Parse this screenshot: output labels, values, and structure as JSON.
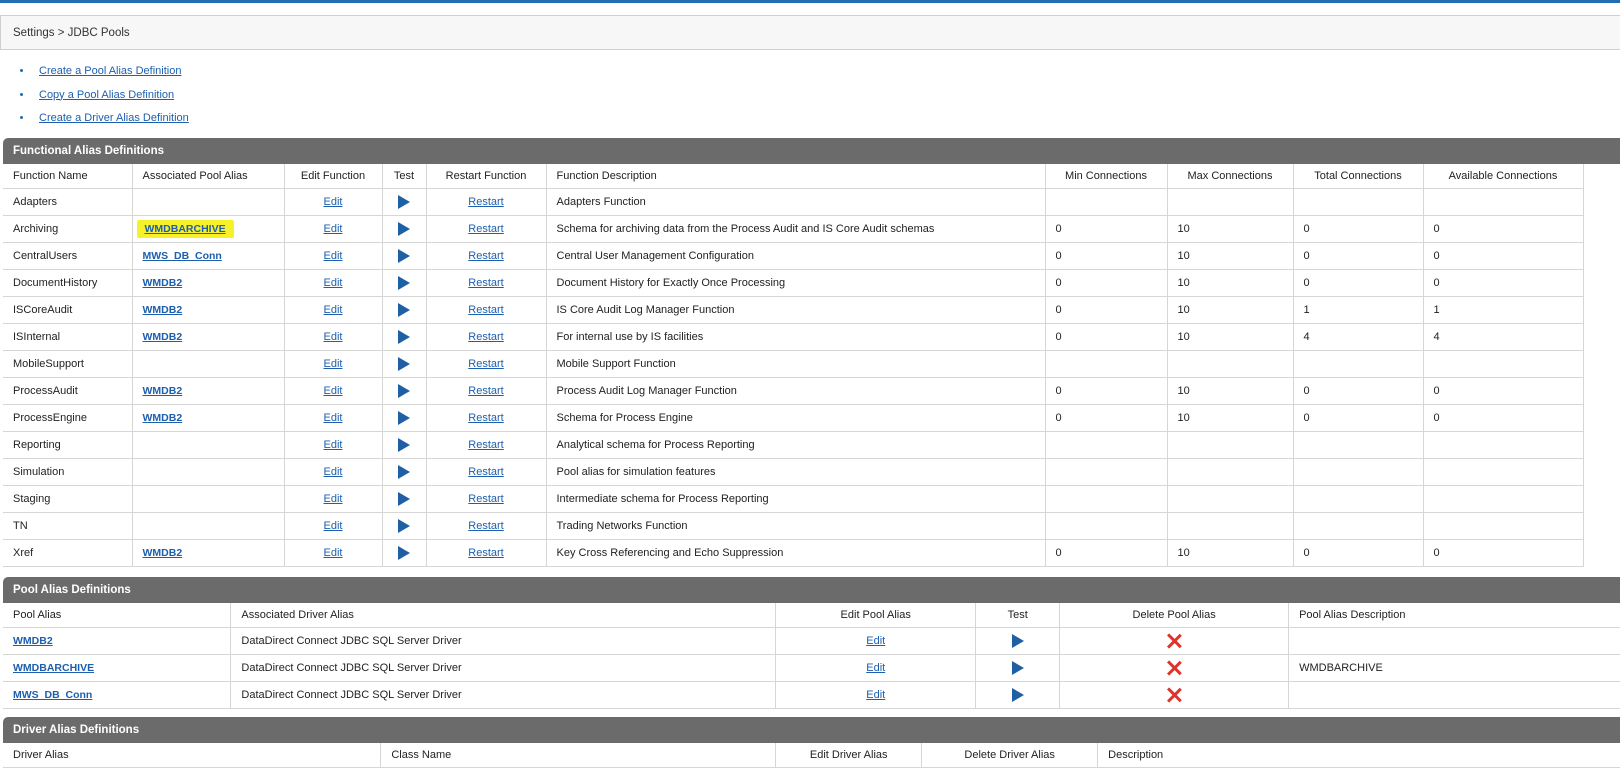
{
  "breadcrumb": "Settings > JDBC Pools",
  "links": [
    {
      "label": "Create a Pool Alias Definition"
    },
    {
      "label": "Copy a Pool Alias Definition"
    },
    {
      "label": "Create a Driver Alias Definition"
    }
  ],
  "functional": {
    "title": "Functional Alias Definitions",
    "headers": {
      "function_name": "Function Name",
      "pool_alias": "Associated Pool Alias",
      "edit": "Edit Function",
      "test": "Test",
      "restart": "Restart Function",
      "description": "Function Description",
      "min": "Min Connections",
      "max": "Max Connections",
      "total": "Total Connections",
      "available": "Available Connections"
    },
    "edit_label": "Edit",
    "restart_label": "Restart",
    "rows": [
      {
        "name": "Adapters",
        "pool": "",
        "desc": "Adapters Function",
        "min": "",
        "max": "",
        "total": "",
        "avail": ""
      },
      {
        "name": "Archiving",
        "pool": "WMDBARCHIVE",
        "highlight": true,
        "desc": "Schema for archiving data from the Process Audit and IS Core Audit schemas",
        "min": "0",
        "max": "10",
        "total": "0",
        "avail": "0"
      },
      {
        "name": "CentralUsers",
        "pool": "MWS_DB_Conn",
        "desc": "Central User Management Configuration",
        "min": "0",
        "max": "10",
        "total": "0",
        "avail": "0"
      },
      {
        "name": "DocumentHistory",
        "pool": "WMDB2",
        "desc": "Document History for Exactly Once Processing",
        "min": "0",
        "max": "10",
        "total": "0",
        "avail": "0"
      },
      {
        "name": "ISCoreAudit",
        "pool": "WMDB2",
        "desc": "IS Core Audit Log Manager Function",
        "min": "0",
        "max": "10",
        "total": "1",
        "avail": "1"
      },
      {
        "name": "ISInternal",
        "pool": "WMDB2",
        "desc": "For internal use by IS facilities",
        "min": "0",
        "max": "10",
        "total": "4",
        "avail": "4"
      },
      {
        "name": "MobileSupport",
        "pool": "",
        "desc": "Mobile Support Function",
        "min": "",
        "max": "",
        "total": "",
        "avail": ""
      },
      {
        "name": "ProcessAudit",
        "pool": "WMDB2",
        "desc": "Process Audit Log Manager Function",
        "min": "0",
        "max": "10",
        "total": "0",
        "avail": "0"
      },
      {
        "name": "ProcessEngine",
        "pool": "WMDB2",
        "desc": "Schema for Process Engine",
        "min": "0",
        "max": "10",
        "total": "0",
        "avail": "0"
      },
      {
        "name": "Reporting",
        "pool": "",
        "desc": "Analytical schema for Process Reporting",
        "min": "",
        "max": "",
        "total": "",
        "avail": ""
      },
      {
        "name": "Simulation",
        "pool": "",
        "desc": "Pool alias for simulation features",
        "min": "",
        "max": "",
        "total": "",
        "avail": ""
      },
      {
        "name": "Staging",
        "pool": "",
        "desc": "Intermediate schema for Process Reporting",
        "min": "",
        "max": "",
        "total": "",
        "avail": ""
      },
      {
        "name": "TN",
        "pool": "",
        "desc": "Trading Networks Function",
        "min": "",
        "max": "",
        "total": "",
        "avail": ""
      },
      {
        "name": "Xref",
        "pool": "WMDB2",
        "desc": "Key Cross Referencing and Echo Suppression",
        "min": "0",
        "max": "10",
        "total": "0",
        "avail": "0"
      }
    ]
  },
  "pools": {
    "title": "Pool Alias Definitions",
    "headers": {
      "alias": "Pool Alias",
      "driver": "Associated Driver Alias",
      "edit": "Edit Pool Alias",
      "test": "Test",
      "delete": "Delete Pool Alias",
      "description": "Pool Alias Description"
    },
    "edit_label": "Edit",
    "rows": [
      {
        "alias": "WMDB2",
        "driver": "DataDirect Connect JDBC SQL Server Driver",
        "desc": ""
      },
      {
        "alias": "WMDBARCHIVE",
        "driver": "DataDirect Connect JDBC SQL Server Driver",
        "desc": "WMDBARCHIVE"
      },
      {
        "alias": "MWS_DB_Conn",
        "driver": "DataDirect Connect JDBC SQL Server Driver",
        "desc": ""
      }
    ]
  },
  "drivers": {
    "title": "Driver Alias Definitions",
    "headers": {
      "alias": "Driver Alias",
      "class": "Class Name",
      "edit": "Edit Driver Alias",
      "delete": "Delete Driver Alias",
      "description": "Description"
    }
  },
  "icons": {
    "test": "play-icon",
    "delete": "delete-x-icon"
  },
  "colors": {
    "header_bar": "#6b6b6b",
    "link": "#1d5fae",
    "highlight": "#f6f12a",
    "delete": "#e0342b",
    "play": "#1f5fa3"
  }
}
